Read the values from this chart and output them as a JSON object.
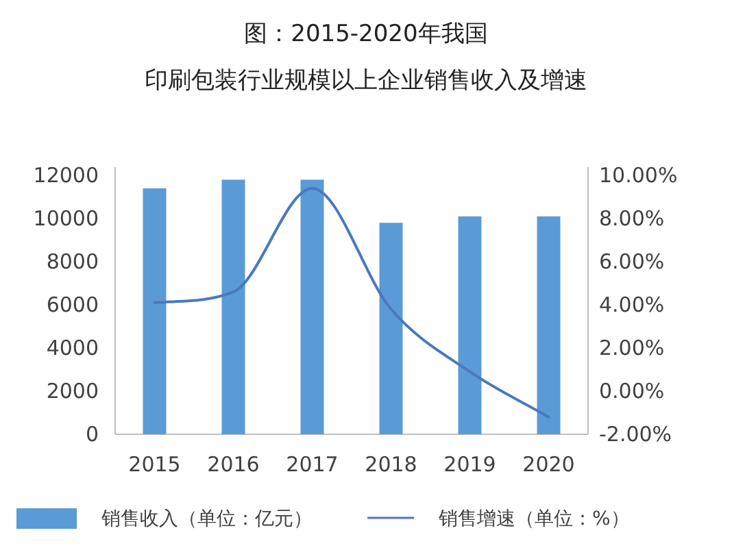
{
  "chart_data": {
    "type": "bar",
    "title": "图：2015-2020年我国",
    "subtitle": "印刷包装行业规模以上企业销售收入及增速",
    "categories": [
      "2015",
      "2016",
      "2017",
      "2018",
      "2019",
      "2020"
    ],
    "series": [
      {
        "name": "销售收入（单位：亿元）",
        "color": "#5b9bd5",
        "values": [
          11400,
          11800,
          11800,
          9800,
          10100,
          10100
        ]
      },
      {
        "name": "销售增速（单位：%）",
        "type": "line",
        "axis": "y2",
        "color": "#4a78c0",
        "values": [
          4.1,
          4.6,
          9.4,
          3.8,
          0.9,
          -1.2
        ]
      }
    ],
    "ylim": [
      0,
      12000
    ],
    "yticks": [
      0,
      2000,
      4000,
      6000,
      8000,
      10000,
      12000
    ],
    "y2lim": [
      -2,
      10
    ],
    "y2ticks": [
      {
        "value": -2,
        "label": "-2.00%"
      },
      {
        "value": 0,
        "label": "0.00%"
      },
      {
        "value": 2,
        "label": "2.00%"
      },
      {
        "value": 4,
        "label": "4.00%"
      },
      {
        "value": 6,
        "label": "6.00%"
      },
      {
        "value": 8,
        "label": "8.00%"
      },
      {
        "value": 10,
        "label": "10.00%"
      }
    ],
    "legend": "bottom"
  }
}
